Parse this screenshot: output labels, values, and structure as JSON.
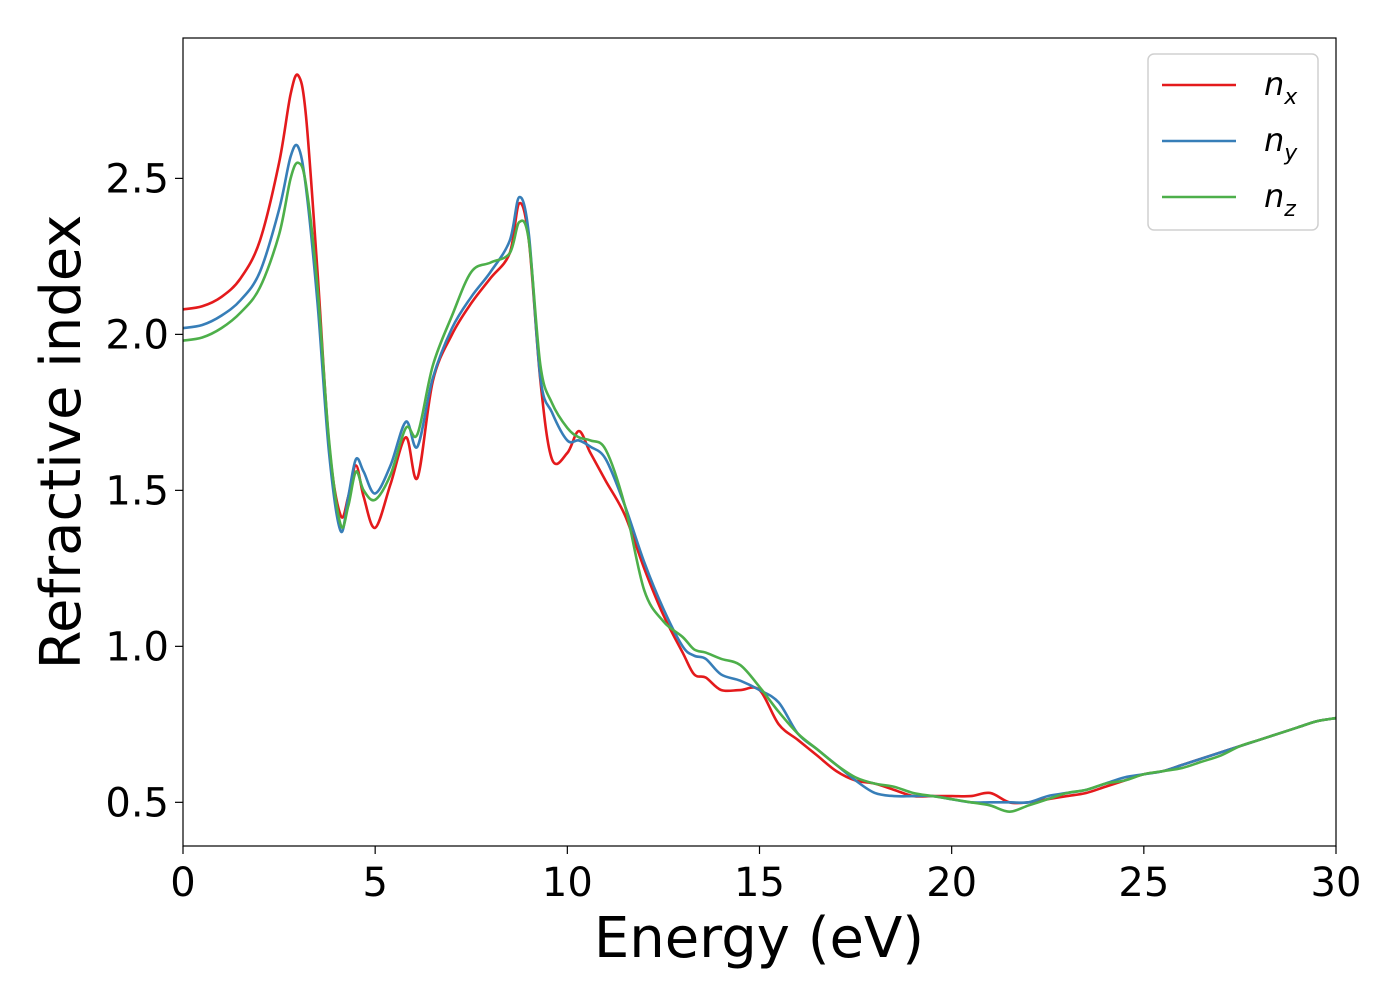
{
  "chart_data": {
    "type": "line",
    "xlabel": "Energy (eV)",
    "ylabel": "Refractive index",
    "xlim": [
      0,
      30
    ],
    "ylim": [
      0.36,
      2.95
    ],
    "xticks": [
      "0",
      "5",
      "10",
      "15",
      "20",
      "25",
      "30"
    ],
    "xtick_values": [
      0,
      5,
      10,
      15,
      20,
      25,
      30
    ],
    "yticks": [
      "0.5",
      "1.0",
      "1.5",
      "2.0",
      "2.5"
    ],
    "ytick_values": [
      0.5,
      1.0,
      1.5,
      2.0,
      2.5
    ],
    "grid": false,
    "legend_position": "top-right",
    "series": [
      {
        "name": "n_x",
        "legend_base": "n",
        "legend_sub": "x",
        "color": "#e41a1c",
        "x": [
          0,
          0.5,
          1,
          1.5,
          2,
          2.5,
          2.8,
          3.0,
          3.2,
          3.5,
          3.8,
          4.1,
          4.3,
          4.5,
          4.7,
          5.0,
          5.4,
          5.8,
          6.1,
          6.5,
          7.0,
          7.5,
          8.0,
          8.5,
          8.75,
          9.0,
          9.3,
          9.6,
          10.0,
          10.3,
          10.6,
          11.0,
          11.5,
          12.0,
          12.5,
          13.0,
          13.3,
          13.6,
          14.0,
          14.5,
          15.0,
          15.5,
          16.0,
          16.5,
          17.0,
          17.5,
          18.0,
          18.5,
          19.0,
          19.5,
          20.0,
          20.5,
          21.0,
          21.5,
          22.0,
          22.5,
          23.0,
          23.5,
          24.0,
          24.5,
          25.0,
          25.5,
          26.0,
          26.5,
          27.0,
          27.5,
          28.0,
          28.5,
          29.0,
          29.5,
          30.0
        ],
        "y": [
          2.08,
          2.09,
          2.12,
          2.18,
          2.3,
          2.55,
          2.77,
          2.83,
          2.7,
          2.2,
          1.65,
          1.42,
          1.48,
          1.58,
          1.48,
          1.38,
          1.52,
          1.67,
          1.54,
          1.85,
          2.0,
          2.1,
          2.18,
          2.26,
          2.42,
          2.3,
          1.85,
          1.6,
          1.62,
          1.69,
          1.62,
          1.53,
          1.42,
          1.25,
          1.1,
          0.98,
          0.91,
          0.9,
          0.86,
          0.86,
          0.86,
          0.75,
          0.7,
          0.65,
          0.6,
          0.57,
          0.56,
          0.54,
          0.52,
          0.52,
          0.52,
          0.52,
          0.53,
          0.5,
          0.5,
          0.51,
          0.52,
          0.53,
          0.55,
          0.57,
          0.59,
          0.6,
          0.62,
          0.64,
          0.66,
          0.68,
          0.7,
          0.72,
          0.74,
          0.76,
          0.77
        ]
      },
      {
        "name": "n_y",
        "legend_base": "n",
        "legend_sub": "y",
        "color": "#377eb8",
        "x": [
          0,
          0.5,
          1,
          1.5,
          2,
          2.5,
          2.8,
          3.0,
          3.2,
          3.5,
          3.8,
          4.1,
          4.3,
          4.5,
          4.7,
          5.0,
          5.4,
          5.8,
          6.1,
          6.5,
          7.0,
          7.5,
          8.0,
          8.5,
          8.75,
          9.0,
          9.3,
          9.6,
          10.0,
          10.3,
          10.6,
          11.0,
          11.5,
          12.0,
          12.5,
          13.0,
          13.3,
          13.6,
          14.0,
          14.5,
          15.0,
          15.5,
          16.0,
          16.5,
          17.0,
          17.5,
          18.0,
          18.5,
          19.0,
          19.5,
          20.0,
          20.5,
          21.0,
          21.5,
          22.0,
          22.5,
          23.0,
          23.5,
          24.0,
          24.5,
          25.0,
          25.5,
          26.0,
          26.5,
          27.0,
          27.5,
          28.0,
          28.5,
          29.0,
          29.5,
          30.0
        ],
        "y": [
          2.02,
          2.03,
          2.06,
          2.11,
          2.2,
          2.4,
          2.57,
          2.6,
          2.47,
          2.1,
          1.62,
          1.37,
          1.48,
          1.6,
          1.56,
          1.49,
          1.58,
          1.72,
          1.64,
          1.86,
          2.02,
          2.12,
          2.2,
          2.3,
          2.44,
          2.32,
          1.86,
          1.75,
          1.66,
          1.66,
          1.64,
          1.6,
          1.45,
          1.27,
          1.12,
          1.0,
          0.97,
          0.96,
          0.91,
          0.89,
          0.86,
          0.82,
          0.72,
          0.67,
          0.62,
          0.57,
          0.53,
          0.52,
          0.52,
          0.52,
          0.51,
          0.5,
          0.5,
          0.5,
          0.5,
          0.52,
          0.53,
          0.54,
          0.56,
          0.58,
          0.59,
          0.6,
          0.62,
          0.64,
          0.66,
          0.68,
          0.7,
          0.72,
          0.74,
          0.76,
          0.77
        ]
      },
      {
        "name": "n_z",
        "legend_base": "n",
        "legend_sub": "z",
        "color": "#4daf4a",
        "x": [
          0,
          0.5,
          1,
          1.5,
          2,
          2.5,
          2.8,
          3.0,
          3.2,
          3.5,
          3.8,
          4.1,
          4.3,
          4.5,
          4.7,
          5.0,
          5.4,
          5.8,
          6.1,
          6.5,
          7.0,
          7.5,
          8.0,
          8.5,
          8.75,
          9.0,
          9.3,
          9.6,
          10.0,
          10.3,
          10.6,
          11.0,
          11.5,
          12.0,
          12.5,
          13.0,
          13.3,
          13.6,
          14.0,
          14.5,
          15.0,
          15.5,
          16.0,
          16.5,
          17.0,
          17.5,
          18.0,
          18.5,
          19.0,
          19.5,
          20.0,
          20.5,
          21.0,
          21.5,
          22.0,
          22.5,
          23.0,
          23.5,
          24.0,
          24.5,
          25.0,
          25.5,
          26.0,
          26.5,
          27.0,
          27.5,
          28.0,
          28.5,
          29.0,
          29.5,
          30.0
        ],
        "y": [
          1.98,
          1.99,
          2.02,
          2.07,
          2.15,
          2.32,
          2.5,
          2.55,
          2.48,
          2.15,
          1.66,
          1.39,
          1.45,
          1.56,
          1.5,
          1.47,
          1.55,
          1.7,
          1.68,
          1.9,
          2.06,
          2.2,
          2.23,
          2.26,
          2.36,
          2.3,
          1.9,
          1.78,
          1.7,
          1.67,
          1.66,
          1.63,
          1.45,
          1.18,
          1.08,
          1.03,
          0.99,
          0.98,
          0.96,
          0.94,
          0.87,
          0.79,
          0.72,
          0.67,
          0.62,
          0.58,
          0.56,
          0.55,
          0.53,
          0.52,
          0.51,
          0.5,
          0.49,
          0.47,
          0.49,
          0.51,
          0.53,
          0.54,
          0.56,
          0.57,
          0.59,
          0.6,
          0.61,
          0.63,
          0.65,
          0.68,
          0.7,
          0.72,
          0.74,
          0.76,
          0.77
        ]
      }
    ]
  }
}
